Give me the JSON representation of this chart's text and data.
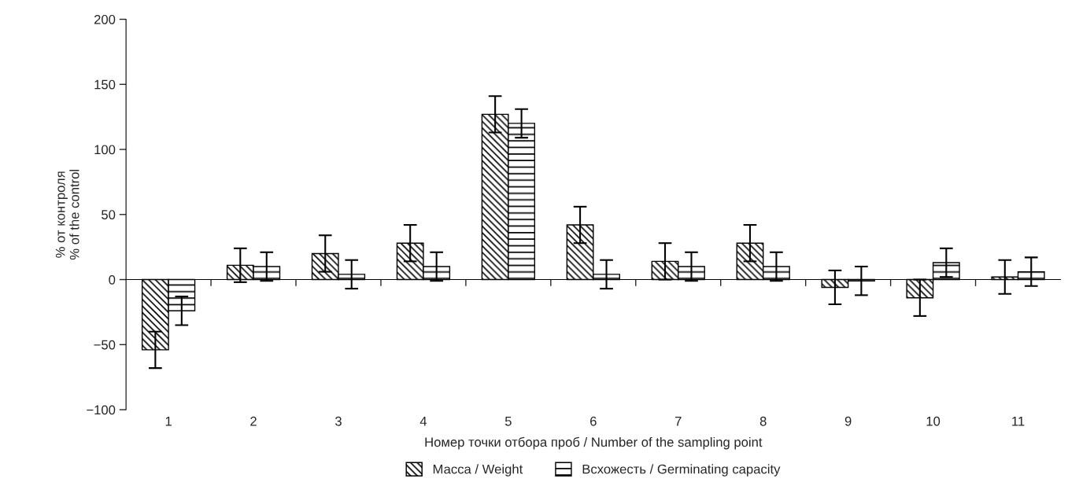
{
  "chart_data": {
    "type": "bar",
    "xlabel": "Номер точки отбора проб / Number of the sampling point",
    "ylabel": "% от контроля\n% of the control",
    "categories": [
      "1",
      "2",
      "3",
      "4",
      "5",
      "6",
      "7",
      "8",
      "9",
      "10",
      "11"
    ],
    "ylim": [
      -100,
      200
    ],
    "yticks": [
      {
        "value": -100,
        "label": "−100"
      },
      {
        "value": -50,
        "label": "−50"
      },
      0,
      50,
      100,
      150,
      200
    ],
    "legend": "bottom",
    "series": [
      {
        "name": "Масса / Weight",
        "color": "#000000",
        "values": [
          -54,
          11,
          20,
          28,
          127,
          42,
          14,
          28,
          -6,
          -14,
          2
        ],
        "errors": [
          14,
          13,
          14,
          14,
          14,
          14,
          14,
          14,
          13,
          14,
          13
        ]
      },
      {
        "name": "Всхожесть / Germinating capacity",
        "color": "#000000",
        "values": [
          -24,
          10,
          4,
          10,
          120,
          4,
          10,
          10,
          -1,
          13,
          6
        ],
        "errors": [
          11,
          11,
          11,
          11,
          11,
          11,
          11,
          11,
          11,
          11,
          11
        ]
      }
    ]
  }
}
